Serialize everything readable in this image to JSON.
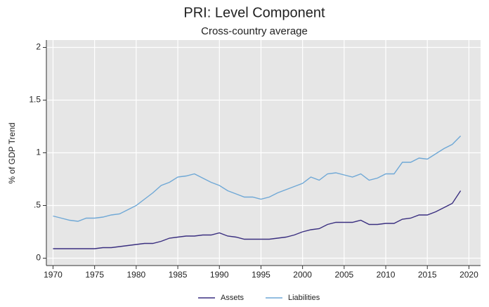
{
  "chart_data": {
    "type": "line",
    "title": "PRI: Level Component",
    "subtitle": "Cross-country average",
    "y_label": "% of GDP Trend",
    "x": [
      1970,
      1971,
      1972,
      1973,
      1974,
      1975,
      1976,
      1977,
      1978,
      1979,
      1980,
      1981,
      1982,
      1983,
      1984,
      1985,
      1986,
      1987,
      1988,
      1989,
      1990,
      1991,
      1992,
      1993,
      1994,
      1995,
      1996,
      1997,
      1998,
      1999,
      2000,
      2001,
      2002,
      2003,
      2004,
      2005,
      2006,
      2007,
      2008,
      2009,
      2010,
      2011,
      2012,
      2013,
      2014,
      2015,
      2016,
      2017,
      2018,
      2019
    ],
    "series": [
      {
        "name": "Assets",
        "color": "#3a2f80",
        "values": [
          0.09,
          0.09,
          0.09,
          0.09,
          0.09,
          0.09,
          0.1,
          0.1,
          0.11,
          0.12,
          0.13,
          0.14,
          0.14,
          0.16,
          0.19,
          0.2,
          0.21,
          0.21,
          0.22,
          0.22,
          0.24,
          0.21,
          0.2,
          0.18,
          0.18,
          0.18,
          0.18,
          0.19,
          0.2,
          0.22,
          0.25,
          0.27,
          0.28,
          0.32,
          0.34,
          0.34,
          0.34,
          0.36,
          0.32,
          0.32,
          0.33,
          0.33,
          0.37,
          0.38,
          0.41,
          0.41,
          0.44,
          0.48,
          0.52,
          0.64
        ]
      },
      {
        "name": "Liabilities",
        "color": "#6fa8d6",
        "values": [
          0.4,
          0.38,
          0.36,
          0.35,
          0.38,
          0.38,
          0.39,
          0.41,
          0.42,
          0.46,
          0.5,
          0.56,
          0.62,
          0.69,
          0.72,
          0.77,
          0.78,
          0.8,
          0.76,
          0.72,
          0.69,
          0.64,
          0.61,
          0.58,
          0.58,
          0.56,
          0.58,
          0.62,
          0.65,
          0.68,
          0.71,
          0.77,
          0.74,
          0.8,
          0.81,
          0.79,
          0.77,
          0.8,
          0.74,
          0.76,
          0.8,
          0.8,
          0.91,
          0.91,
          0.95,
          0.94,
          0.99,
          1.04,
          1.08,
          1.16
        ]
      }
    ],
    "xlim": [
      1969.2,
      2021.4
    ],
    "ylim": [
      -0.07,
      2.07
    ],
    "xticks": [
      1970,
      1975,
      1980,
      1985,
      1990,
      1995,
      2000,
      2005,
      2010,
      2015,
      2020
    ],
    "yticks": [
      0,
      {
        "value": 0.5,
        "label": ".5"
      },
      1,
      1.5,
      2
    ],
    "grid": true,
    "legend_position": "bottom"
  }
}
